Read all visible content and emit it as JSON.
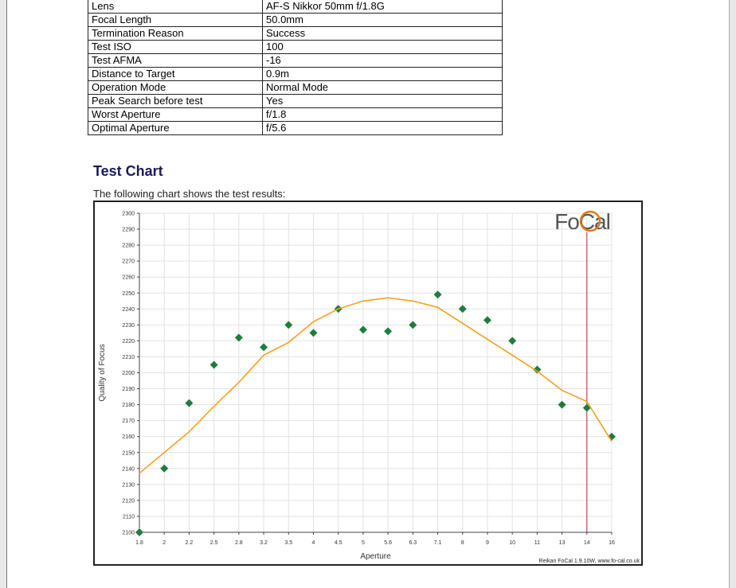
{
  "table": {
    "rows": [
      [
        "Lens",
        "AF-S Nikkor 50mm f/1.8G"
      ],
      [
        "Focal Length",
        "50.0mm"
      ],
      [
        "Termination Reason",
        "Success"
      ],
      [
        "Test ISO",
        "100"
      ],
      [
        "Test AFMA",
        "-16"
      ],
      [
        "Distance to Target",
        "0.9m"
      ],
      [
        "Operation Mode",
        "Normal Mode"
      ],
      [
        "Peak Search before test",
        "Yes"
      ],
      [
        "Worst Aperture",
        "f/1.8"
      ],
      [
        "Optimal Aperture",
        "f/5.6"
      ]
    ]
  },
  "section": {
    "heading": "Test Chart",
    "intro": "The following chart shows the test results:"
  },
  "chart_data": {
    "type": "scatter",
    "logo": "FoCal",
    "footer": "Reikan FoCal 1.9.10W, www.fo-cal.co.uk",
    "x_label": "Aperture",
    "y_label": "Quality of Focus",
    "categories": [
      "1.8",
      "2",
      "2.2",
      "2.5",
      "2.8",
      "3.2",
      "3.5",
      "4",
      "4.5",
      "5",
      "5.6",
      "6.3",
      "7.1",
      "8",
      "9",
      "10",
      "11",
      "13",
      "14",
      "16"
    ],
    "series": [
      {
        "color": "#1e7d3e",
        "marker": "diamond",
        "values": [
          2100,
          2140,
          2181,
          2205,
          2222,
          2216,
          2230,
          2225,
          2240,
          2227,
          2226,
          2230,
          2249,
          2240,
          2233,
          2220,
          2202,
          2180,
          2178,
          2160
        ]
      },
      {
        "color": "#f5a020",
        "marker": "line",
        "values": [
          2137,
          2150,
          2163,
          2179,
          2194,
          2211,
          2219,
          2232,
          2240,
          2245,
          2247,
          2245,
          2241,
          2231,
          2221,
          2211,
          2201,
          2189,
          2182,
          2157
        ]
      }
    ],
    "highlight": "14",
    "highlight_color": "#c0282d",
    "ylim": [
      2100,
      2300
    ],
    "yticks": [
      2100,
      2110,
      2120,
      2130,
      2140,
      2150,
      2160,
      2170,
      2180,
      2190,
      2200,
      2210,
      2220,
      2230,
      2240,
      2250,
      2260,
      2270,
      2280,
      2290,
      2300
    ],
    "grid": true
  }
}
